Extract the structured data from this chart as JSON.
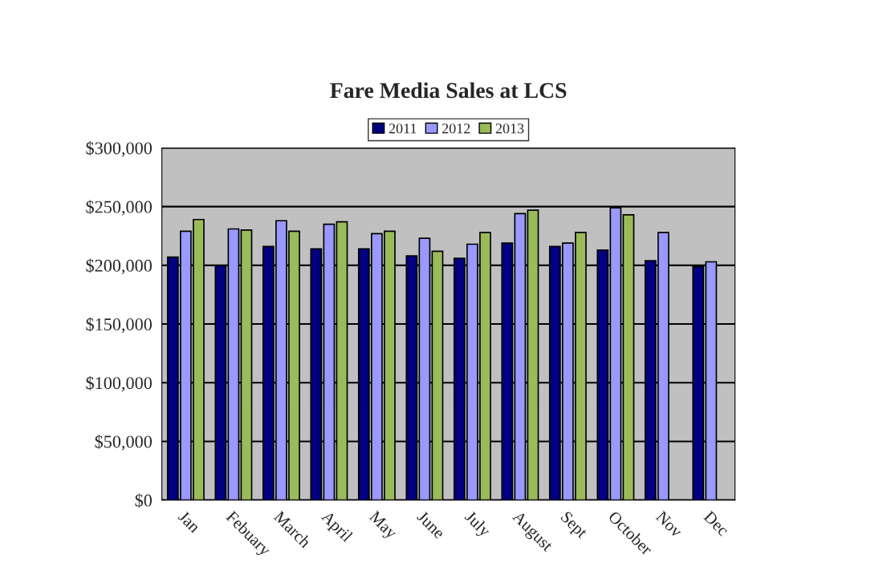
{
  "chart_data": {
    "type": "bar",
    "title": "Fare Media Sales at LCS",
    "categories": [
      "Jan",
      "Febuary",
      "March",
      "April",
      "May",
      "June",
      "July",
      "August",
      "Sept",
      "October",
      "Nov",
      "Dec"
    ],
    "series": [
      {
        "name": "2011",
        "color": "#000080",
        "values": [
          207000,
          200000,
          216000,
          214000,
          214000,
          208000,
          206000,
          219000,
          216000,
          213000,
          204000,
          199000
        ]
      },
      {
        "name": "2012",
        "color": "#9999ff",
        "values": [
          229000,
          231000,
          238000,
          235000,
          227000,
          223000,
          218000,
          244000,
          219000,
          249000,
          228000,
          203000
        ]
      },
      {
        "name": "2013",
        "color": "#9bbb59",
        "values": [
          239000,
          230000,
          229000,
          237000,
          229000,
          212000,
          228000,
          247000,
          228000,
          243000,
          null,
          null
        ]
      }
    ],
    "ylim": [
      0,
      300000
    ],
    "yticks": [
      {
        "value": 0,
        "label": "$0"
      },
      {
        "value": 50000,
        "label": "$50,000"
      },
      {
        "value": 100000,
        "label": "$100,000"
      },
      {
        "value": 150000,
        "label": "$150,000"
      },
      {
        "value": 200000,
        "label": "$200,000"
      },
      {
        "value": 250000,
        "label": "$250,000"
      },
      {
        "value": 300000,
        "label": "$300,000"
      }
    ],
    "grid": "y",
    "legend": "top"
  }
}
